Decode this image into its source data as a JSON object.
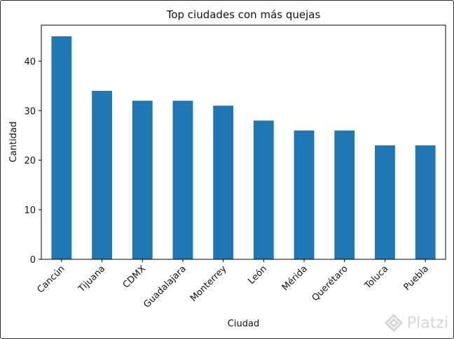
{
  "watermark": {
    "text": "Platzi"
  },
  "chart_data": {
    "type": "bar",
    "title": "Top ciudades con más quejas",
    "xlabel": "Ciudad",
    "ylabel": "Cantidad",
    "categories": [
      "Cancún",
      "Tijuana",
      "CDMX",
      "Guadalajara",
      "Monterrey",
      "León",
      "Mérida",
      "Querétaro",
      "Toluca",
      "Puebla"
    ],
    "values": [
      45,
      34,
      32,
      32,
      31,
      28,
      26,
      26,
      23,
      23
    ],
    "yticks": [
      0,
      10,
      20,
      30,
      40
    ],
    "ylim": [
      0,
      47.25
    ],
    "bar_color": "#1f77b4",
    "grid": false,
    "legend": "none"
  }
}
